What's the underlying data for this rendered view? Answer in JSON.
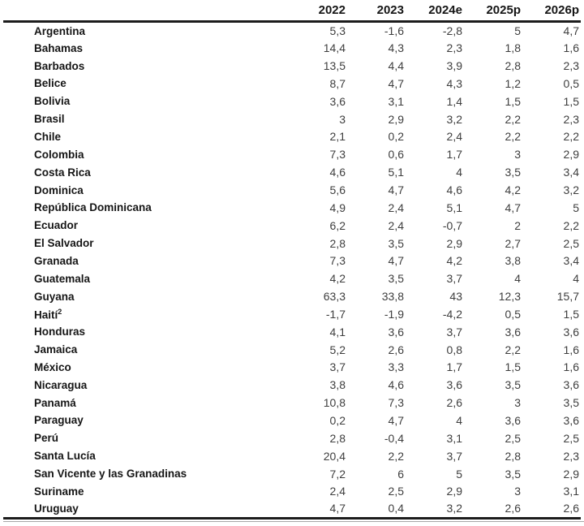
{
  "chart_data": {
    "type": "table",
    "columns": [
      "2022",
      "2023",
      "2024e",
      "2025p",
      "2026p"
    ],
    "rows": [
      {
        "country": "Argentina",
        "values": [
          "5,3",
          "-1,6",
          "-2,8",
          "5",
          "4,7"
        ]
      },
      {
        "country": "Bahamas",
        "values": [
          "14,4",
          "4,3",
          "2,3",
          "1,8",
          "1,6"
        ]
      },
      {
        "country": "Barbados",
        "values": [
          "13,5",
          "4,4",
          "3,9",
          "2,8",
          "2,3"
        ]
      },
      {
        "country": "Belice",
        "values": [
          "8,7",
          "4,7",
          "4,3",
          "1,2",
          "0,5"
        ]
      },
      {
        "country": "Bolivia",
        "values": [
          "3,6",
          "3,1",
          "1,4",
          "1,5",
          "1,5"
        ]
      },
      {
        "country": "Brasil",
        "values": [
          "3",
          "2,9",
          "3,2",
          "2,2",
          "2,3"
        ]
      },
      {
        "country": "Chile",
        "values": [
          "2,1",
          "0,2",
          "2,4",
          "2,2",
          "2,2"
        ]
      },
      {
        "country": "Colombia",
        "values": [
          "7,3",
          "0,6",
          "1,7",
          "3",
          "2,9"
        ]
      },
      {
        "country": "Costa Rica",
        "values": [
          "4,6",
          "5,1",
          "4",
          "3,5",
          "3,4"
        ]
      },
      {
        "country": "Dominica",
        "values": [
          "5,6",
          "4,7",
          "4,6",
          "4,2",
          "3,2"
        ]
      },
      {
        "country": "República Dominicana",
        "values": [
          "4,9",
          "2,4",
          "5,1",
          "4,7",
          "5"
        ]
      },
      {
        "country": "Ecuador",
        "values": [
          "6,2",
          "2,4",
          "-0,7",
          "2",
          "2,2"
        ]
      },
      {
        "country": "El Salvador",
        "values": [
          "2,8",
          "3,5",
          "2,9",
          "2,7",
          "2,5"
        ]
      },
      {
        "country": "Granada",
        "values": [
          "7,3",
          "4,7",
          "4,2",
          "3,8",
          "3,4"
        ]
      },
      {
        "country": "Guatemala",
        "values": [
          "4,2",
          "3,5",
          "3,7",
          "4",
          "4"
        ]
      },
      {
        "country": "Guyana",
        "values": [
          "63,3",
          "33,8",
          "43",
          "12,3",
          "15,7"
        ]
      },
      {
        "country": "Haití",
        "footnote": "2",
        "values": [
          "-1,7",
          "-1,9",
          "-4,2",
          "0,5",
          "1,5"
        ]
      },
      {
        "country": "Honduras",
        "values": [
          "4,1",
          "3,6",
          "3,7",
          "3,6",
          "3,6"
        ]
      },
      {
        "country": "Jamaica",
        "values": [
          "5,2",
          "2,6",
          "0,8",
          "2,2",
          "1,6"
        ]
      },
      {
        "country": "México",
        "values": [
          "3,7",
          "3,3",
          "1,7",
          "1,5",
          "1,6"
        ]
      },
      {
        "country": "Nicaragua",
        "values": [
          "3,8",
          "4,6",
          "3,6",
          "3,5",
          "3,6"
        ]
      },
      {
        "country": "Panamá",
        "values": [
          "10,8",
          "7,3",
          "2,6",
          "3",
          "3,5"
        ]
      },
      {
        "country": "Paraguay",
        "values": [
          "0,2",
          "4,7",
          "4",
          "3,6",
          "3,6"
        ]
      },
      {
        "country": "Perú",
        "values": [
          "2,8",
          "-0,4",
          "3,1",
          "2,5",
          "2,5"
        ]
      },
      {
        "country": "Santa Lucía",
        "values": [
          "20,4",
          "2,2",
          "3,7",
          "2,8",
          "2,3"
        ]
      },
      {
        "country": "San Vicente y las Granadinas",
        "values": [
          "7,2",
          "6",
          "5",
          "3,5",
          "2,9"
        ]
      },
      {
        "country": "Suriname",
        "values": [
          "2,4",
          "2,5",
          "2,9",
          "3",
          "3,1"
        ]
      },
      {
        "country": "Uruguay",
        "values": [
          "4,7",
          "0,4",
          "3,2",
          "2,6",
          "2,6"
        ]
      }
    ]
  }
}
